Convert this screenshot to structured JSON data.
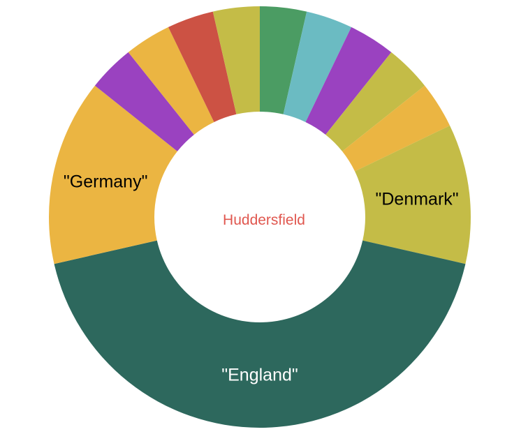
{
  "chart_data": {
    "type": "pie",
    "donut": true,
    "center_label": "Huddersfield",
    "center_label_color": "#e0574f",
    "slices": [
      {
        "label": "",
        "value": 1,
        "color": "#4b9c63"
      },
      {
        "label": "",
        "value": 1,
        "color": "#6bbbc2"
      },
      {
        "label": "",
        "value": 1,
        "color": "#9a42c0"
      },
      {
        "label": "",
        "value": 1,
        "color": "#c4bc47"
      },
      {
        "label": "",
        "value": 1,
        "color": "#ebb542"
      },
      {
        "label": "\"Denmark\"",
        "value": 3,
        "color": "#c4bc47",
        "label_color": "#000000"
      },
      {
        "label": "\"England\"",
        "value": 12,
        "color": "#2d685d",
        "label_color": "#ffffff"
      },
      {
        "label": "\"Germany\"",
        "value": 4,
        "color": "#ebb542",
        "label_color": "#000000"
      },
      {
        "label": "",
        "value": 1,
        "color": "#9a42c0"
      },
      {
        "label": "",
        "value": 1,
        "color": "#ebb542"
      },
      {
        "label": "",
        "value": 1,
        "color": "#cc5244"
      },
      {
        "label": "",
        "value": 1,
        "color": "#c4bc47"
      }
    ]
  }
}
